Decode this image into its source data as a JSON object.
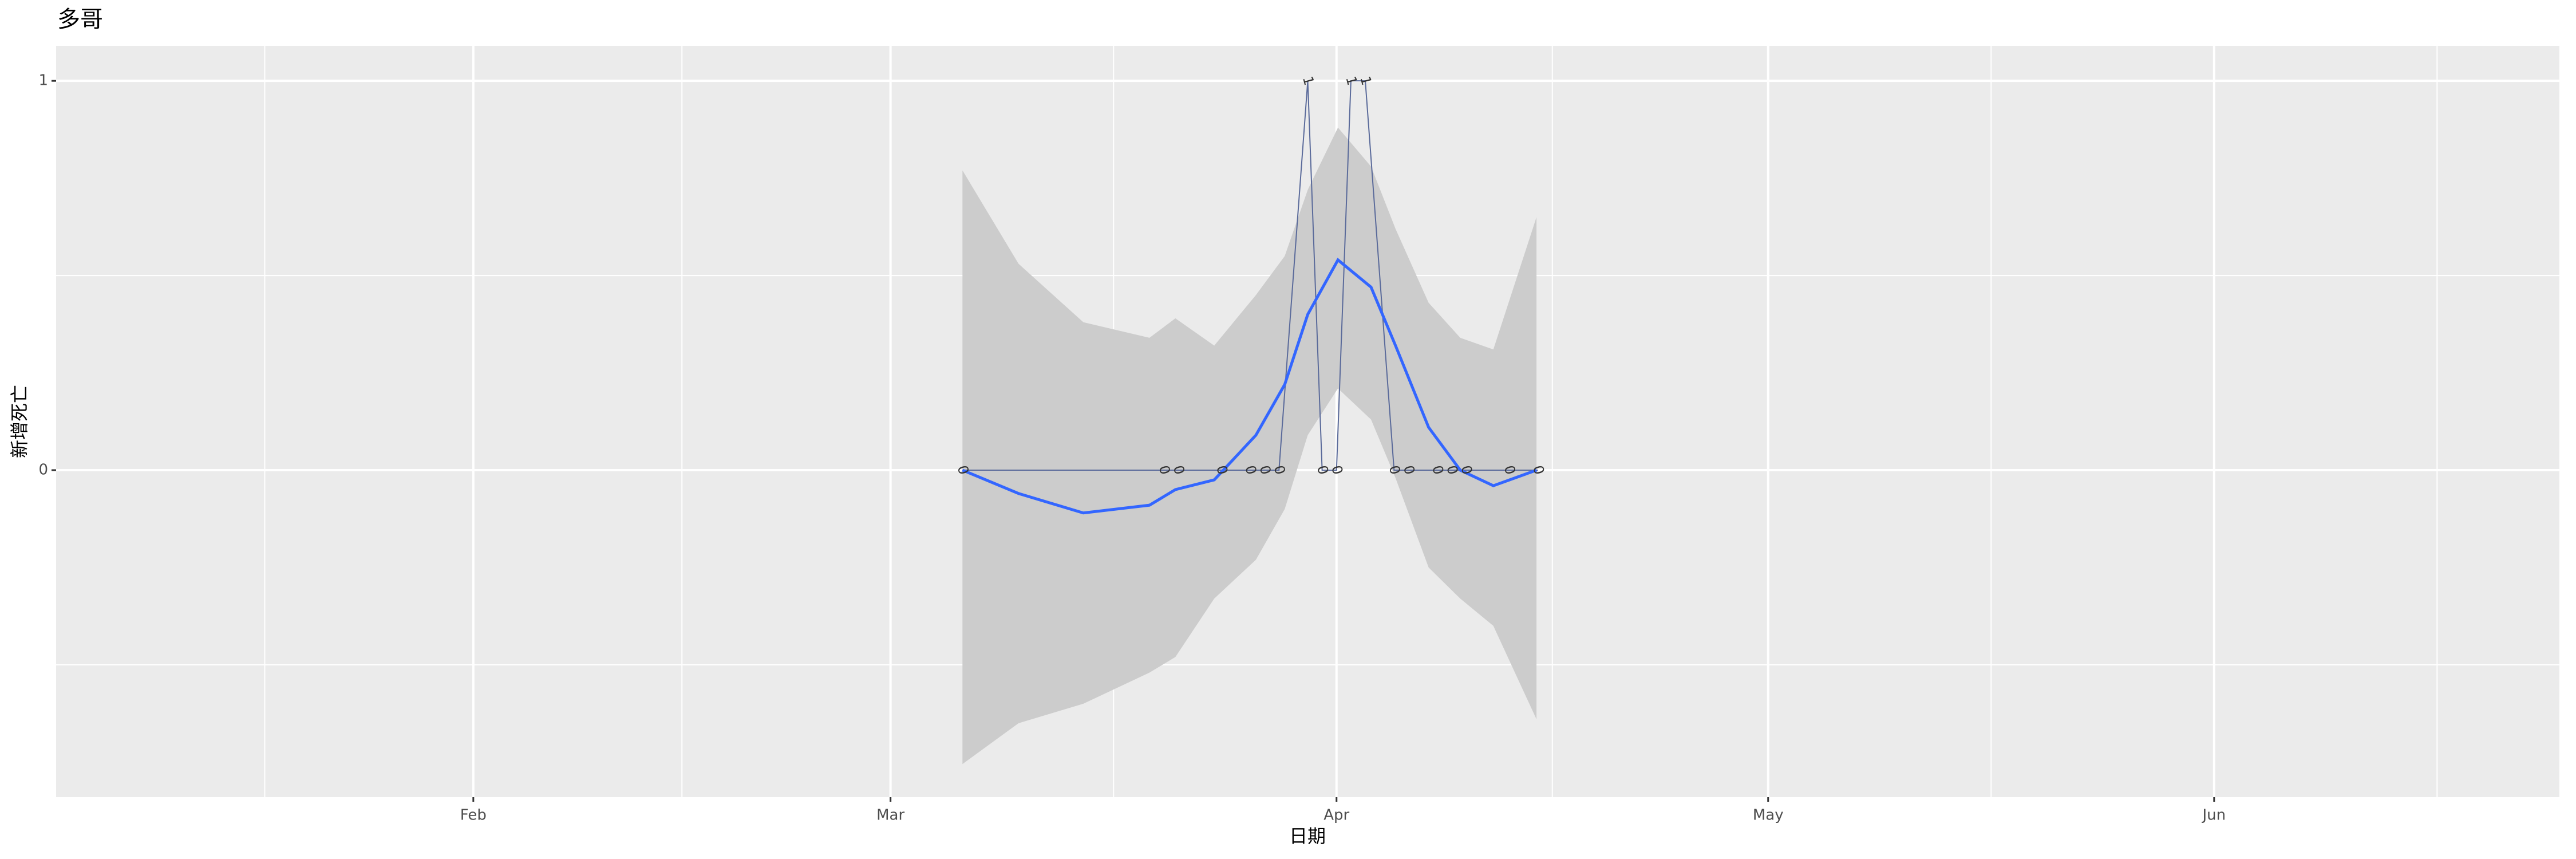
{
  "chart_data": {
    "type": "line",
    "title": "多哥",
    "x_label": "日期",
    "y_label": "新增死亡",
    "x": [
      66,
      80,
      81,
      84,
      86,
      87,
      88,
      90,
      91,
      92,
      93,
      94,
      96,
      97,
      99,
      100,
      101,
      104,
      106
    ],
    "values": [
      0,
      0,
      0,
      0,
      0,
      0,
      0,
      1,
      0,
      0,
      1,
      1,
      0,
      0,
      0,
      0,
      0,
      0,
      0
    ],
    "color": "#5a6a9a",
    "smooth": {
      "color": "#3366ff",
      "band_color": "#cccccc",
      "x": [
        66,
        69.9,
        74.4,
        79,
        80.8,
        83.5,
        86.4,
        88.4,
        90,
        92.1,
        94.4,
        96.1,
        98.4,
        100.6,
        102.9,
        105.9
      ],
      "values": [
        0,
        -0.06,
        -0.11,
        -0.09,
        -0.05,
        -0.025,
        0.09,
        0.22,
        0.4,
        0.54,
        0.47,
        0.32,
        0.11,
        0,
        -0.04,
        0
      ],
      "lower": [
        -0.755,
        -0.65,
        -0.6,
        -0.52,
        -0.48,
        -0.33,
        -0.23,
        -0.1,
        0.09,
        0.21,
        0.13,
        -0.02,
        -0.25,
        -0.33,
        -0.4,
        -0.64
      ],
      "upper": [
        0.77,
        0.53,
        0.38,
        0.34,
        0.39,
        0.32,
        0.45,
        0.55,
        0.72,
        0.88,
        0.78,
        0.62,
        0.43,
        0.34,
        0.31,
        0.65
      ]
    },
    "xlim": [
      3,
      177
    ],
    "xticks": [
      {
        "value": 32,
        "label": "Feb"
      },
      {
        "value": 61,
        "label": "Mar"
      },
      {
        "value": 92,
        "label": "Apr"
      },
      {
        "value": 122,
        "label": "May"
      },
      {
        "value": 153,
        "label": "Jun"
      }
    ],
    "ylim": [
      -0.84,
      1.09
    ],
    "yticks": [
      0,
      1
    ],
    "grid": true
  }
}
